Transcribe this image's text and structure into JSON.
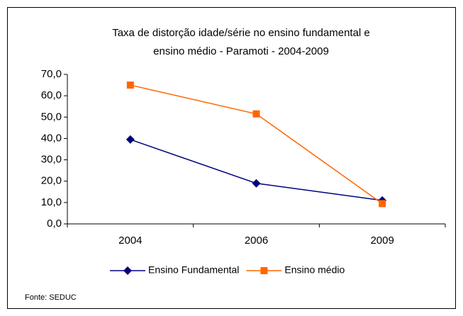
{
  "chart_data": {
    "type": "line",
    "title": [
      "Taxa de distorção idade/série no ensino fundamental e",
      "ensino médio - Paramoti -  2004-2009"
    ],
    "categories": [
      "2004",
      "2006",
      "2009"
    ],
    "series": [
      {
        "name": "Ensino Fundamental",
        "color": "#000080",
        "marker": "diamond",
        "values": [
          39.5,
          19.0,
          11.0
        ]
      },
      {
        "name": "Ensino médio",
        "color": "#ff6600",
        "marker": "square",
        "values": [
          65.0,
          51.5,
          9.5
        ]
      }
    ],
    "ylim": [
      0,
      70
    ],
    "yticks": [
      {
        "value": 0,
        "label": "0,0"
      },
      {
        "value": 10,
        "label": "10,0"
      },
      {
        "value": 20,
        "label": "20,0"
      },
      {
        "value": 30,
        "label": "30,0"
      },
      {
        "value": 40,
        "label": "40,0"
      },
      {
        "value": 50,
        "label": "50,0"
      },
      {
        "value": 60,
        "label": "60,0"
      },
      {
        "value": 70,
        "label": "70,0"
      }
    ],
    "grid": false,
    "legend": "bottom",
    "source": "Fonte: SEDUC"
  }
}
